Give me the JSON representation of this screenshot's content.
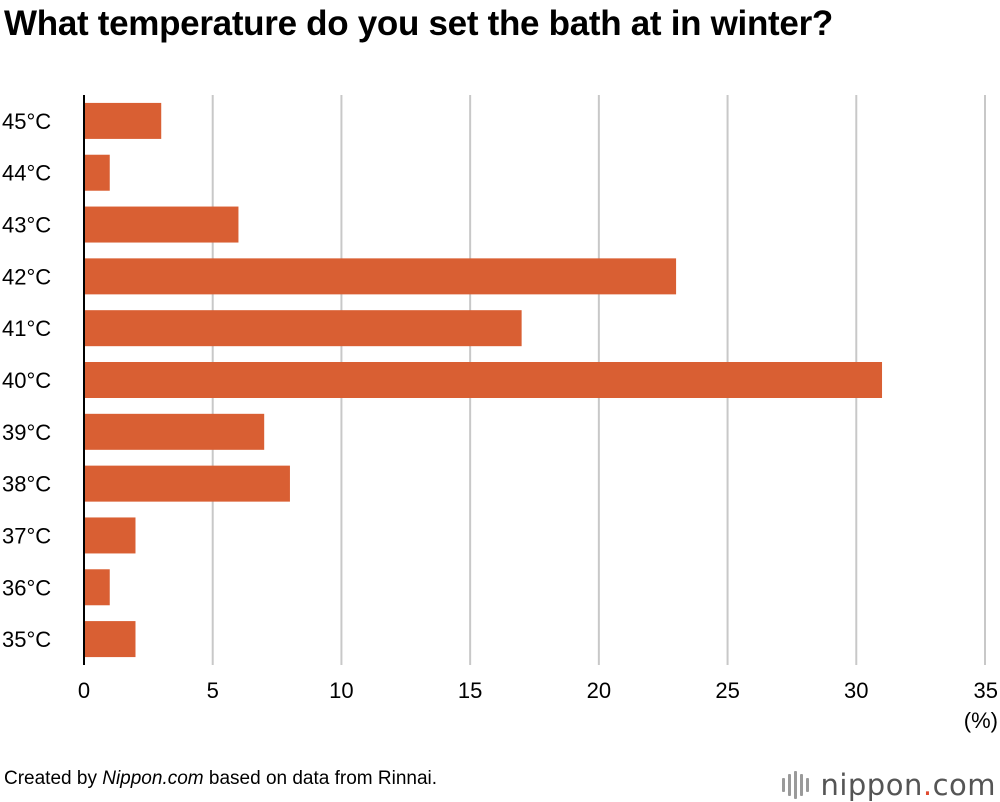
{
  "title": "What temperature do you set the bath at in winter?",
  "chart_data": {
    "type": "bar",
    "orientation": "horizontal",
    "title": "What temperature do you set the bath at in winter?",
    "categories": [
      "45°C",
      "44°C",
      "43°C",
      "42°C",
      "41°C",
      "40°C",
      "39°C",
      "38°C",
      "37°C",
      "36°C",
      "35°C"
    ],
    "values": [
      3,
      1,
      6,
      23,
      17,
      31,
      7,
      8,
      2,
      1,
      2
    ],
    "xlim": [
      0,
      35
    ],
    "xticks": [
      "0",
      "5",
      "10",
      "15",
      "20",
      "25",
      "30",
      "35"
    ],
    "unit_label": "(%)",
    "grid": true,
    "bar_color": "#d95f33"
  },
  "footer": {
    "prefix": "Created by ",
    "site": "Nippon.com",
    "suffix": " based on data from Rinnai."
  },
  "brand": {
    "name": "nippon",
    "dot": ".",
    "tld": "com",
    "mark": "bars-logo-icon",
    "accent_color": "#e04a2f"
  }
}
